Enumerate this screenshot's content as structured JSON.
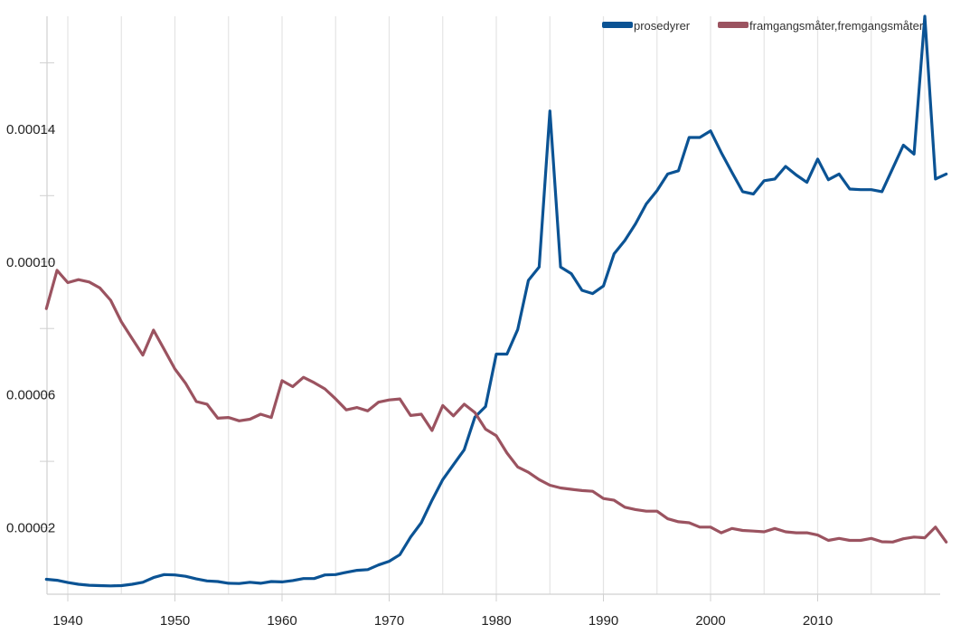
{
  "chart_data": {
    "type": "line",
    "title": "",
    "xlabel": "",
    "ylabel": "",
    "xlim": [
      1938,
      2022
    ],
    "ylim": [
      0,
      0.000174
    ],
    "grid": true,
    "legend_position": "top-right",
    "x_tick_labels": [
      "1940",
      "1950",
      "1960",
      "1970",
      "1980",
      "1990",
      "2000",
      "2010"
    ],
    "x_ticks": [
      1940,
      1950,
      1960,
      1970,
      1980,
      1990,
      2000,
      2010
    ],
    "y_tick_labels": [
      "0.00002",
      "0.00006",
      "0.00010",
      "0.00014"
    ],
    "y_ticks": [
      2e-05,
      6e-05,
      0.0001,
      0.00014
    ],
    "series": [
      {
        "name": "prosedyrer",
        "color": "#0b5394",
        "x": [
          1938,
          1939,
          1940,
          1941,
          1942,
          1943,
          1944,
          1945,
          1946,
          1947,
          1948,
          1949,
          1950,
          1951,
          1952,
          1953,
          1954,
          1955,
          1956,
          1957,
          1958,
          1959,
          1960,
          1961,
          1962,
          1963,
          1964,
          1965,
          1966,
          1967,
          1968,
          1969,
          1970,
          1971,
          1972,
          1973,
          1974,
          1975,
          1976,
          1977,
          1978,
          1979,
          1980,
          1981,
          1982,
          1983,
          1984,
          1985,
          1986,
          1987,
          1988,
          1989,
          1990,
          1991,
          1992,
          1993,
          1994,
          1995,
          1996,
          1997,
          1998,
          1999,
          2000,
          2001,
          2002,
          2003,
          2004,
          2005,
          2006,
          2007,
          2008,
          2009,
          2010,
          2011,
          2012,
          2013,
          2014,
          2015,
          2016,
          2017,
          2018,
          2019,
          2020,
          2021,
          2022
        ],
        "values": [
          4.5e-06,
          4.2e-06,
          3.5e-06,
          3e-06,
          2.7e-06,
          2.6e-06,
          2.5e-06,
          2.6e-06,
          3e-06,
          3.6e-06,
          5e-06,
          5.9e-06,
          5.8e-06,
          5.4e-06,
          4.6e-06,
          4e-06,
          3.8e-06,
          3.3e-06,
          3.2e-06,
          3.6e-06,
          3.3e-06,
          3.8e-06,
          3.7e-06,
          4.1e-06,
          4.7e-06,
          4.7e-06,
          5.8e-06,
          5.9e-06,
          6.6e-06,
          7.2e-06,
          7.4e-06,
          8.8e-06,
          9.9e-06,
          1.19e-05,
          1.72e-05,
          2.15e-05,
          2.83e-05,
          3.45e-05,
          3.9e-05,
          4.35e-05,
          5.33e-05,
          5.65e-05,
          7.23e-05,
          7.23e-05,
          7.97e-05,
          9.45e-05,
          9.85e-05,
          0.0001455,
          9.85e-05,
          9.65e-05,
          9.15e-05,
          9.05e-05,
          9.28e-05,
          0.0001025,
          0.0001065,
          0.0001115,
          0.0001175,
          0.0001215,
          0.0001265,
          0.0001275,
          0.0001375,
          0.0001375,
          0.0001395,
          0.000133,
          0.000127,
          0.0001212,
          0.0001205,
          0.0001245,
          0.000125,
          0.0001288,
          0.0001262,
          0.000124,
          0.000131,
          0.0001248,
          0.0001265,
          0.000122,
          0.0001218,
          0.0001218,
          0.0001212,
          0.0001282,
          0.0001352,
          0.0001325,
          0.000174,
          0.000125,
          0.0001265
        ]
      },
      {
        "name": "framgangsmåter,fremgangsmåter",
        "color": "#9b5360",
        "x": [
          1938,
          1939,
          1940,
          1941,
          1942,
          1943,
          1944,
          1945,
          1946,
          1947,
          1948,
          1949,
          1950,
          1951,
          1952,
          1953,
          1954,
          1955,
          1956,
          1957,
          1958,
          1959,
          1960,
          1961,
          1962,
          1963,
          1964,
          1965,
          1966,
          1967,
          1968,
          1969,
          1970,
          1971,
          1972,
          1973,
          1974,
          1975,
          1976,
          1977,
          1978,
          1979,
          1980,
          1981,
          1982,
          1983,
          1984,
          1985,
          1986,
          1987,
          1988,
          1989,
          1990,
          1991,
          1992,
          1993,
          1994,
          1995,
          1996,
          1997,
          1998,
          1999,
          2000,
          2001,
          2002,
          2003,
          2004,
          2005,
          2006,
          2007,
          2008,
          2009,
          2010,
          2011,
          2012,
          2013,
          2014,
          2015,
          2016,
          2017,
          2018,
          2019,
          2020,
          2021,
          2022
        ],
        "values": [
          8.6e-05,
          9.75e-05,
          9.38e-05,
          9.47e-05,
          9.4e-05,
          9.22e-05,
          8.85e-05,
          8.2e-05,
          7.7e-05,
          7.2e-05,
          7.95e-05,
          7.37e-05,
          6.78e-05,
          6.35e-05,
          5.8e-05,
          5.72e-05,
          5.3e-05,
          5.32e-05,
          5.22e-05,
          5.27e-05,
          5.42e-05,
          5.32e-05,
          6.43e-05,
          6.25e-05,
          6.53e-05,
          6.37e-05,
          6.18e-05,
          5.88e-05,
          5.55e-05,
          5.62e-05,
          5.52e-05,
          5.78e-05,
          5.85e-05,
          5.88e-05,
          5.38e-05,
          5.42e-05,
          4.93e-05,
          5.68e-05,
          5.37e-05,
          5.72e-05,
          5.47e-05,
          4.97e-05,
          4.77e-05,
          4.25e-05,
          3.83e-05,
          3.67e-05,
          3.45e-05,
          3.28e-05,
          3.2e-05,
          3.16e-05,
          3.12e-05,
          3.1e-05,
          2.88e-05,
          2.83e-05,
          2.62e-05,
          2.55e-05,
          2.5e-05,
          2.5e-05,
          2.27e-05,
          2.18e-05,
          2.15e-05,
          2.02e-05,
          2.02e-05,
          1.85e-05,
          1.98e-05,
          1.92e-05,
          1.9e-05,
          1.88e-05,
          1.98e-05,
          1.88e-05,
          1.85e-05,
          1.85e-05,
          1.78e-05,
          1.62e-05,
          1.68e-05,
          1.62e-05,
          1.62e-05,
          1.68e-05,
          1.58e-05,
          1.57e-05,
          1.67e-05,
          1.72e-05,
          1.7e-05,
          2.02e-05,
          1.57e-05
        ]
      }
    ]
  }
}
